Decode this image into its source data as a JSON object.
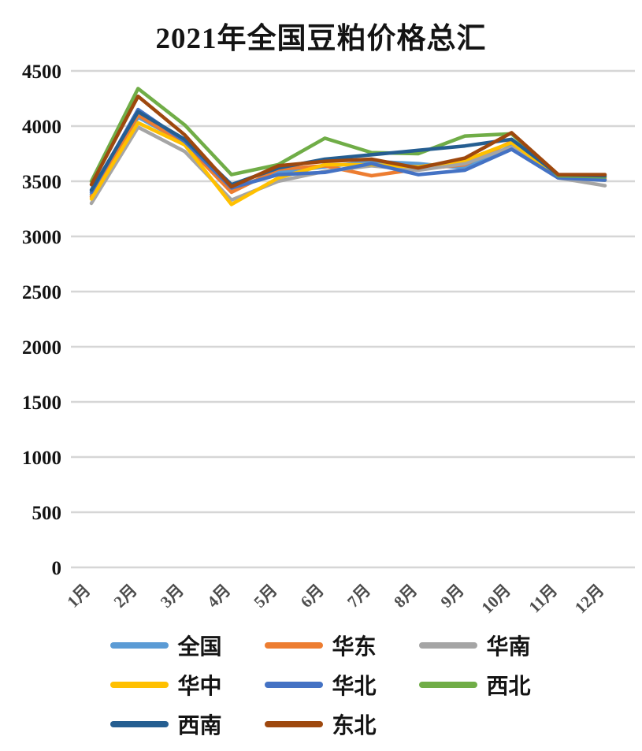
{
  "chart": {
    "title": "2021年全国豆粕价格总汇"
  },
  "chart_data": {
    "type": "line",
    "title": "2021年全国豆粕价格总汇",
    "categories": [
      "1月",
      "2月",
      "3月",
      "4月",
      "5月",
      "6月",
      "7月",
      "8月",
      "9月",
      "10月",
      "11月",
      "12月"
    ],
    "series": [
      {
        "name": "全国",
        "color": "#5B9BD5",
        "values": [
          3380,
          4080,
          3850,
          3430,
          3580,
          3630,
          3680,
          3660,
          3620,
          3820,
          3550,
          3520
        ]
      },
      {
        "name": "华东",
        "color": "#ED7D31",
        "values": [
          3360,
          4100,
          3840,
          3400,
          3610,
          3640,
          3550,
          3610,
          3650,
          3860,
          3540,
          3530
        ]
      },
      {
        "name": "华南",
        "color": "#A5A5A5",
        "values": [
          3300,
          3990,
          3770,
          3330,
          3500,
          3590,
          3640,
          3600,
          3660,
          3810,
          3530,
          3460
        ]
      },
      {
        "name": "华中",
        "color": "#FFC000",
        "values": [
          3340,
          4030,
          3830,
          3290,
          3530,
          3650,
          3650,
          3630,
          3690,
          3850,
          3540,
          3510
        ]
      },
      {
        "name": "华北",
        "color": "#4472C4",
        "values": [
          3400,
          4150,
          3860,
          3440,
          3560,
          3580,
          3660,
          3560,
          3600,
          3790,
          3530,
          3510
        ]
      },
      {
        "name": "西北",
        "color": "#70AD47",
        "values": [
          3500,
          4340,
          4010,
          3560,
          3650,
          3890,
          3760,
          3750,
          3910,
          3930,
          3550,
          3540
        ]
      },
      {
        "name": "西南",
        "color": "#255E91",
        "values": [
          3420,
          4130,
          3880,
          3470,
          3620,
          3700,
          3740,
          3780,
          3820,
          3880,
          3560,
          3550
        ]
      },
      {
        "name": "东北",
        "color": "#9E480E",
        "values": [
          3470,
          4270,
          3920,
          3450,
          3640,
          3680,
          3700,
          3620,
          3710,
          3940,
          3560,
          3560
        ]
      }
    ],
    "xlabel": "",
    "ylabel": "",
    "ylim": [
      0,
      4500
    ],
    "ytick_step": 500,
    "grid": true,
    "gridline_color": "#d6d6d6",
    "legend_position": "bottom",
    "x_tick_rotation": -45
  }
}
